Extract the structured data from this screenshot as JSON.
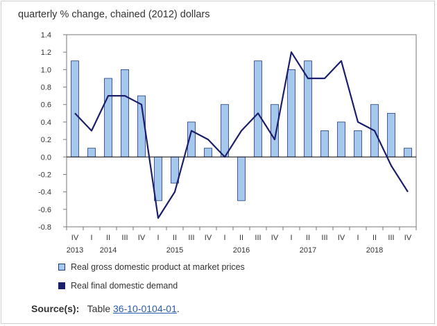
{
  "colors": {
    "bar_fill": "#a6c8ec",
    "bar_stroke": "#1f3a7a",
    "line": "#1c1f6b",
    "link": "#2a5db0"
  },
  "source": {
    "label": "Source(s):",
    "prefix": "Table",
    "table_id": "36-10-0104-01",
    "suffix": "."
  },
  "chart_data": {
    "type": "bar",
    "title": "quarterly % change, chained (2012) dollars",
    "xlabel": "",
    "ylabel": "",
    "ylim": [
      -0.8,
      1.4
    ],
    "yticks": [
      "1.4",
      "1.2",
      "1.0",
      "0.8",
      "0.6",
      "0.4",
      "0.2",
      "0.0",
      "-0.2",
      "-0.4",
      "-0.6",
      "-0.8"
    ],
    "ytick_values": [
      1.4,
      1.2,
      1.0,
      0.8,
      0.6,
      0.4,
      0.2,
      0.0,
      -0.2,
      -0.4,
      -0.6,
      -0.8
    ],
    "categories": [
      "IV",
      "I",
      "II",
      "III",
      "IV",
      "I",
      "II",
      "III",
      "IV",
      "I",
      "II",
      "III",
      "IV",
      "I",
      "II",
      "III",
      "IV",
      "I",
      "II",
      "III",
      "IV"
    ],
    "years": [
      {
        "label": "2013",
        "index": 0
      },
      {
        "label": "2014",
        "index": 2
      },
      {
        "label": "2015",
        "index": 6
      },
      {
        "label": "2016",
        "index": 10
      },
      {
        "label": "2017",
        "index": 14
      },
      {
        "label": "2018",
        "index": 18
      }
    ],
    "series": [
      {
        "name": "Real gross domestic product at market prices",
        "kind": "bar",
        "values": [
          1.1,
          0.1,
          0.9,
          1.0,
          0.7,
          -0.5,
          -0.3,
          0.4,
          0.1,
          0.6,
          -0.5,
          1.1,
          0.6,
          1.0,
          1.1,
          0.3,
          0.4,
          0.3,
          0.6,
          0.5,
          0.1
        ]
      },
      {
        "name": "Real final domestic demand",
        "kind": "line",
        "values": [
          0.5,
          0.3,
          0.7,
          0.7,
          0.6,
          -0.7,
          -0.4,
          0.3,
          0.2,
          0.0,
          0.3,
          0.5,
          0.2,
          1.2,
          0.9,
          0.9,
          1.1,
          0.4,
          0.3,
          -0.1,
          -0.4
        ]
      }
    ],
    "legend_position": "bottom-left"
  }
}
